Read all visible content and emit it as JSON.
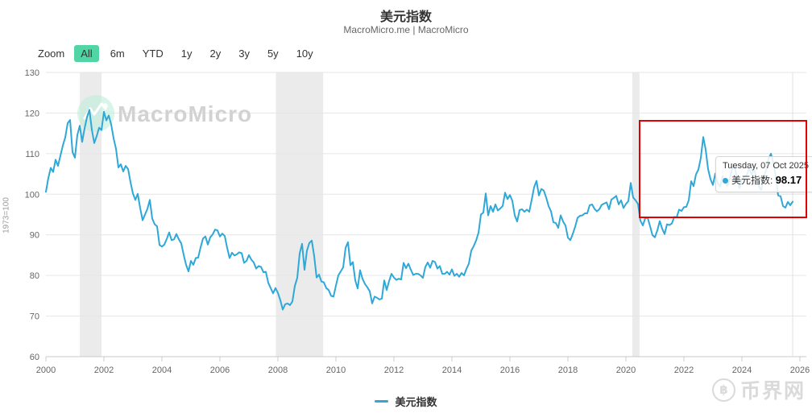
{
  "header": {
    "title": "美元指数",
    "subtitle": "MacroMicro.me | MacroMicro"
  },
  "toolbar": {
    "zoom_label": "Zoom",
    "buttons": [
      {
        "label": "All",
        "selected": true
      },
      {
        "label": "6m",
        "selected": false
      },
      {
        "label": "YTD",
        "selected": false
      },
      {
        "label": "1y",
        "selected": false
      },
      {
        "label": "2y",
        "selected": false
      },
      {
        "label": "3y",
        "selected": false
      },
      {
        "label": "5y",
        "selected": false
      },
      {
        "label": "10y",
        "selected": false
      }
    ]
  },
  "chart_data": {
    "type": "line",
    "title": "美元指数",
    "xlabel": "",
    "ylabel": "1973=100",
    "xlim": [
      2000,
      2026
    ],
    "ylim": [
      60,
      130
    ],
    "grid": true,
    "y_ticks": [
      60,
      70,
      80,
      90,
      100,
      110,
      120,
      130
    ],
    "x_ticks": [
      2000,
      2002,
      2004,
      2006,
      2008,
      2010,
      2012,
      2014,
      2016,
      2018,
      2020,
      2022,
      2024,
      2026
    ],
    "recession_bands": [
      [
        2001.17,
        2001.92
      ],
      [
        2007.93,
        2009.56
      ],
      [
        2020.22,
        2020.47
      ]
    ],
    "crosshair_x": 2025.75,
    "series": [
      {
        "name": "美元指数",
        "color": "#2FA8D8",
        "start_year": 2000,
        "points_per_year": 12,
        "values": [
          100.6,
          104.0,
          106.5,
          105.5,
          108.5,
          107.0,
          109.5,
          112.0,
          114.0,
          117.5,
          118.3,
          110.4,
          109.0,
          114.6,
          116.9,
          112.9,
          116.2,
          119.0,
          120.8,
          115.9,
          112.6,
          114.3,
          116.4,
          115.8,
          120.3,
          118.2,
          119.4,
          117.2,
          113.8,
          111.2,
          106.6,
          107.4,
          105.6,
          107.0,
          106.2,
          103.0,
          100.2,
          98.6,
          100.1,
          96.6,
          93.6,
          95.0,
          96.4,
          98.6,
          94.0,
          92.6,
          92.1,
          87.5,
          87.1,
          87.6,
          89.0,
          90.6,
          88.7,
          88.9,
          90.2,
          88.9,
          87.9,
          85.1,
          82.6,
          81.0,
          83.6,
          82.6,
          84.3,
          84.4,
          86.9,
          89.1,
          89.6,
          87.6,
          89.4,
          90.1,
          91.3,
          91.1,
          89.6,
          90.3,
          89.7,
          86.8,
          84.3,
          85.6,
          84.9,
          85.2,
          85.7,
          85.5,
          83.1,
          83.6,
          85.0,
          83.9,
          83.2,
          81.7,
          82.3,
          82.1,
          80.8,
          80.9,
          78.2,
          76.9,
          75.6,
          76.9,
          75.7,
          73.9,
          71.6,
          72.9,
          73.1,
          72.7,
          73.6,
          77.4,
          79.4,
          85.4,
          87.8,
          81.4,
          86.1,
          88.0,
          88.6,
          84.8,
          79.5,
          80.2,
          78.5,
          78.3,
          76.9,
          76.4,
          75.0,
          74.8,
          77.5,
          80.0,
          81.0,
          82.0,
          86.8,
          88.2,
          82.5,
          83.3,
          78.8,
          76.8,
          81.3,
          79.2,
          77.9,
          77.1,
          76.1,
          73.1,
          74.8,
          74.5,
          74.1,
          74.3,
          78.8,
          76.4,
          78.6,
          80.4,
          79.5,
          78.9,
          79.2,
          79.0,
          83.1,
          81.8,
          82.9,
          81.4,
          80.1,
          80.4,
          80.4,
          80.0,
          79.4,
          82.1,
          83.2,
          81.9,
          83.6,
          83.3,
          81.7,
          82.3,
          80.4,
          80.4,
          80.9,
          80.2,
          81.5,
          79.9,
          80.4,
          79.7,
          80.6,
          80.0,
          81.6,
          82.9,
          86.1,
          87.2,
          88.6,
          90.5,
          95.0,
          95.5,
          100.2,
          94.8,
          97.1,
          95.7,
          97.5,
          96.0,
          96.5,
          97.1,
          100.4,
          98.8,
          99.8,
          98.4,
          94.8,
          93.3,
          96.1,
          96.3,
          95.7,
          96.2,
          95.7,
          98.6,
          101.7,
          103.3,
          99.7,
          101.3,
          100.9,
          99.2,
          97.1,
          95.8,
          93.1,
          92.9,
          91.7,
          94.8,
          93.3,
          92.3,
          89.3,
          88.7,
          90.2,
          92.0,
          94.2,
          94.7,
          94.8,
          95.3,
          95.3,
          97.3,
          97.5,
          96.4,
          95.8,
          96.3,
          97.4,
          97.7,
          98.0,
          96.3,
          98.7,
          99.1,
          99.6,
          97.5,
          98.5,
          96.6,
          97.6,
          98.3,
          102.8,
          99.2,
          98.5,
          97.6,
          93.5,
          92.3,
          94.1,
          94.2,
          92.1,
          89.9,
          89.4,
          91.1,
          93.4,
          91.5,
          90.2,
          92.6,
          92.4,
          92.8,
          94.4,
          94.3,
          96.2,
          95.9,
          96.8,
          96.9,
          98.5,
          103.2,
          102.0,
          104.9,
          106.1,
          109.0,
          114.1,
          111.0,
          106.2,
          103.7,
          102.3,
          105.1,
          102.7,
          101.9,
          104.5,
          103.1,
          102.1,
          103.8,
          106.4,
          106.9,
          103.7,
          101.5,
          103.7,
          104.3,
          104.7,
          106.4,
          104.9,
          106.1,
          104.3,
          101.9,
          101.0,
          104.2,
          105.9,
          108.7,
          110.0,
          107.8,
          104.4,
          99.7,
          99.5,
          97.1,
          96.7,
          98.1,
          97.3,
          98.17
        ]
      }
    ]
  },
  "tooltip": {
    "date": "Tuesday, 07 Oct 2025",
    "series_label": "美元指数:",
    "value": "98.17"
  },
  "annotation": {
    "color": "#e30000"
  },
  "legend": {
    "label": "美元指数"
  },
  "watermarks": {
    "macromicro": "MacroMicro",
    "bijie": "币界网",
    "bijie_symbol": "฿"
  }
}
